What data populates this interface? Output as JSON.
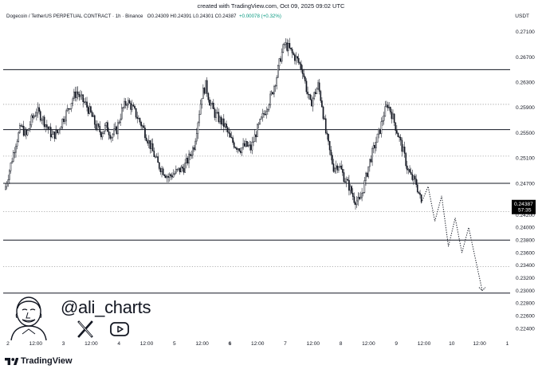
{
  "header": {
    "created": "created with TradingView.com, Oct 09, 2025 09:02 UTC",
    "symbol": "Dogecoin / TetherUS PERPETUAL CONTRACT · 1h · Binance",
    "ohlc": "O0.24309  H0.24391  L0.24301  C0.24387",
    "change": "+0.00078 (+0.32%)",
    "currency": "USDT"
  },
  "price_badge": {
    "price": "0.24387",
    "countdown": "57:35"
  },
  "social": {
    "handle": "@ali_charts",
    "icons": [
      "x-logo-icon",
      "youtube-play-icon"
    ]
  },
  "brand": {
    "name": "TradingView"
  },
  "colors": {
    "up": "#089981",
    "candle": "#000000",
    "badge": "#000000",
    "grid": "#e6e6e6"
  },
  "chart_data": {
    "type": "candlestick",
    "symbol": "DOGEUSDT.P",
    "interval": "1h",
    "ylim": [
      0.2225,
      0.2725
    ],
    "y_ticks": [
      "0.27100",
      "0.26700",
      "0.26300",
      "0.25900",
      "0.25500",
      "0.25100",
      "0.24700",
      "0.24200",
      "0.24000",
      "0.23800",
      "0.23600",
      "0.23400",
      "0.23200",
      "0.23000",
      "0.22800",
      "0.22600",
      "0.22400"
    ],
    "x_ticks": [
      "2",
      "12:00",
      "3",
      "12:00",
      "4",
      "12:00",
      "5",
      "12:00",
      "6",
      "12:00",
      "7",
      "12:00",
      "8",
      "12:00",
      "9",
      "12:00",
      "10",
      "12:00",
      "1"
    ],
    "bold_x_ticks": [
      "6"
    ],
    "solid_levels": [
      0.265,
      0.2555,
      0.247,
      0.238,
      0.2296
    ],
    "dotted_levels": [
      0.2595,
      0.2513,
      0.2425,
      0.2338
    ],
    "close_path": [
      [
        0,
        0.2465
      ],
      [
        4,
        0.25
      ],
      [
        8,
        0.2535
      ],
      [
        12,
        0.256
      ],
      [
        16,
        0.2545
      ],
      [
        20,
        0.257
      ],
      [
        24,
        0.2585
      ],
      [
        28,
        0.2575
      ],
      [
        32,
        0.256
      ],
      [
        36,
        0.2545
      ],
      [
        40,
        0.255
      ],
      [
        44,
        0.257
      ],
      [
        48,
        0.2585
      ],
      [
        52,
        0.2605
      ],
      [
        55,
        0.2615
      ],
      [
        58,
        0.2605
      ],
      [
        62,
        0.2595
      ],
      [
        66,
        0.258
      ],
      [
        70,
        0.256
      ],
      [
        74,
        0.255
      ],
      [
        78,
        0.256
      ],
      [
        82,
        0.2545
      ],
      [
        86,
        0.2555
      ],
      [
        90,
        0.2585
      ],
      [
        94,
        0.26
      ],
      [
        98,
        0.259
      ],
      [
        102,
        0.2575
      ],
      [
        106,
        0.256
      ],
      [
        110,
        0.254
      ],
      [
        114,
        0.252
      ],
      [
        118,
        0.25
      ],
      [
        122,
        0.249
      ],
      [
        126,
        0.248
      ],
      [
        130,
        0.2485
      ],
      [
        134,
        0.249
      ],
      [
        138,
        0.2495
      ],
      [
        142,
        0.251
      ],
      [
        146,
        0.253
      ],
      [
        149,
        0.257
      ],
      [
        152,
        0.261
      ],
      [
        155,
        0.2625
      ],
      [
        158,
        0.26
      ],
      [
        162,
        0.258
      ],
      [
        166,
        0.257
      ],
      [
        170,
        0.256
      ],
      [
        174,
        0.254
      ],
      [
        178,
        0.253
      ],
      [
        182,
        0.2525
      ],
      [
        186,
        0.253
      ],
      [
        190,
        0.2525
      ],
      [
        194,
        0.255
      ],
      [
        198,
        0.257
      ],
      [
        202,
        0.259
      ],
      [
        206,
        0.261
      ],
      [
        210,
        0.264
      ],
      [
        213,
        0.267
      ],
      [
        216,
        0.269
      ],
      [
        219,
        0.2685
      ],
      [
        222,
        0.2675
      ],
      [
        226,
        0.2665
      ],
      [
        230,
        0.265
      ],
      [
        233,
        0.262
      ],
      [
        236,
        0.2595
      ],
      [
        239,
        0.261
      ],
      [
        242,
        0.2625
      ],
      [
        245,
        0.2595
      ],
      [
        248,
        0.255
      ],
      [
        251,
        0.252
      ],
      [
        254,
        0.2495
      ],
      [
        258,
        0.25
      ],
      [
        262,
        0.248
      ],
      [
        266,
        0.2465
      ],
      [
        270,
        0.2445
      ],
      [
        274,
        0.244
      ],
      [
        278,
        0.247
      ],
      [
        282,
        0.2505
      ],
      [
        286,
        0.253
      ],
      [
        290,
        0.2555
      ],
      [
        293,
        0.258
      ],
      [
        296,
        0.2595
      ],
      [
        299,
        0.258
      ],
      [
        302,
        0.256
      ],
      [
        305,
        0.254
      ],
      [
        308,
        0.252
      ],
      [
        311,
        0.2495
      ],
      [
        314,
        0.248
      ],
      [
        318,
        0.247
      ],
      [
        322,
        0.2439
      ]
    ],
    "projection": [
      0.2439,
      0.2465,
      0.241,
      0.245,
      0.237,
      0.2415,
      0.236,
      0.24,
      0.235,
      0.23
    ],
    "last_price": 0.24387
  }
}
